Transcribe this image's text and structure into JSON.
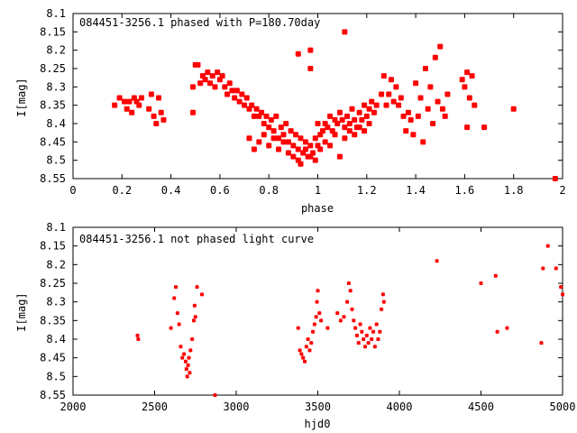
{
  "chart_data": [
    {
      "type": "scatter",
      "title": "084451-3256.1 phased with P=180.70day",
      "xlabel": "phase",
      "ylabel": "I[mag]",
      "xlim": [
        0,
        2
      ],
      "ylim": [
        8.1,
        8.55
      ],
      "y_inverted": true,
      "grid": false,
      "x_ticks": [
        "0",
        "0.2",
        "0.4",
        "0.6",
        "0.8",
        "1",
        "1.2",
        "1.4",
        "1.6",
        "1.8",
        "2"
      ],
      "y_ticks": [
        "8.1",
        "8.15",
        "8.2",
        "8.25",
        "8.3",
        "8.35",
        "8.4",
        "8.45",
        "8.5",
        "8.55"
      ],
      "marker_color": "#ff0000",
      "points": [
        [
          0.17,
          8.35
        ],
        [
          0.19,
          8.33
        ],
        [
          0.21,
          8.34
        ],
        [
          0.22,
          8.36
        ],
        [
          0.23,
          8.34
        ],
        [
          0.24,
          8.37
        ],
        [
          0.25,
          8.33
        ],
        [
          0.26,
          8.34
        ],
        [
          0.27,
          8.35
        ],
        [
          0.28,
          8.33
        ],
        [
          0.31,
          8.36
        ],
        [
          0.32,
          8.32
        ],
        [
          0.33,
          8.38
        ],
        [
          0.34,
          8.4
        ],
        [
          0.35,
          8.33
        ],
        [
          0.36,
          8.37
        ],
        [
          0.37,
          8.39
        ],
        [
          0.49,
          8.37
        ],
        [
          0.49,
          8.3
        ],
        [
          0.5,
          8.24
        ],
        [
          0.51,
          8.24
        ],
        [
          0.52,
          8.29
        ],
        [
          0.53,
          8.27
        ],
        [
          0.54,
          8.28
        ],
        [
          0.55,
          8.26
        ],
        [
          0.56,
          8.29
        ],
        [
          0.57,
          8.27
        ],
        [
          0.58,
          8.3
        ],
        [
          0.59,
          8.26
        ],
        [
          0.6,
          8.28
        ],
        [
          0.61,
          8.27
        ],
        [
          0.62,
          8.3
        ],
        [
          0.63,
          8.32
        ],
        [
          0.64,
          8.29
        ],
        [
          0.65,
          8.31
        ],
        [
          0.66,
          8.33
        ],
        [
          0.67,
          8.31
        ],
        [
          0.68,
          8.34
        ],
        [
          0.69,
          8.32
        ],
        [
          0.7,
          8.35
        ],
        [
          0.71,
          8.33
        ],
        [
          0.72,
          8.36
        ],
        [
          0.73,
          8.35
        ],
        [
          0.74,
          8.38
        ],
        [
          0.75,
          8.36
        ],
        [
          0.76,
          8.38
        ],
        [
          0.77,
          8.37
        ],
        [
          0.78,
          8.4
        ],
        [
          0.79,
          8.38
        ],
        [
          0.8,
          8.41
        ],
        [
          0.81,
          8.39
        ],
        [
          0.82,
          8.42
        ],
        [
          0.83,
          8.38
        ],
        [
          0.84,
          8.44
        ],
        [
          0.85,
          8.41
        ],
        [
          0.86,
          8.43
        ],
        [
          0.87,
          8.4
        ],
        [
          0.88,
          8.45
        ],
        [
          0.89,
          8.42
        ],
        [
          0.9,
          8.46
        ],
        [
          0.91,
          8.43
        ],
        [
          0.92,
          8.47
        ],
        [
          0.93,
          8.44
        ],
        [
          0.94,
          8.48
        ],
        [
          0.95,
          8.45
        ],
        [
          0.96,
          8.49
        ],
        [
          0.97,
          8.46
        ],
        [
          0.98,
          8.48
        ],
        [
          0.99,
          8.44
        ],
        [
          1.0,
          8.46
        ],
        [
          1.01,
          8.43
        ],
        [
          1.02,
          8.42
        ],
        [
          1.03,
          8.4
        ],
        [
          1.04,
          8.41
        ],
        [
          1.05,
          8.38
        ],
        [
          1.06,
          8.42
        ],
        [
          1.07,
          8.39
        ],
        [
          1.08,
          8.4
        ],
        [
          1.09,
          8.37
        ],
        [
          1.1,
          8.39
        ],
        [
          1.11,
          8.41
        ],
        [
          1.12,
          8.38
        ],
        [
          1.13,
          8.4
        ],
        [
          1.14,
          8.36
        ],
        [
          1.15,
          8.39
        ],
        [
          1.16,
          8.41
        ],
        [
          1.17,
          8.37
        ],
        [
          1.18,
          8.39
        ],
        [
          1.19,
          8.35
        ],
        [
          1.2,
          8.38
        ],
        [
          1.21,
          8.36
        ],
        [
          1.22,
          8.34
        ],
        [
          1.23,
          8.37
        ],
        [
          1.24,
          8.35
        ],
        [
          0.72,
          8.44
        ],
        [
          0.74,
          8.47
        ],
        [
          0.76,
          8.45
        ],
        [
          0.78,
          8.43
        ],
        [
          0.8,
          8.46
        ],
        [
          0.82,
          8.44
        ],
        [
          0.84,
          8.47
        ],
        [
          0.86,
          8.45
        ],
        [
          0.88,
          8.48
        ],
        [
          0.9,
          8.49
        ],
        [
          0.92,
          8.5
        ],
        [
          0.93,
          8.51
        ],
        [
          0.95,
          8.47
        ],
        [
          0.97,
          8.49
        ],
        [
          0.99,
          8.5
        ],
        [
          1.01,
          8.47
        ],
        [
          1.03,
          8.45
        ],
        [
          1.05,
          8.46
        ],
        [
          1.07,
          8.43
        ],
        [
          1.09,
          8.49
        ],
        [
          1.11,
          8.44
        ],
        [
          1.13,
          8.42
        ],
        [
          1.15,
          8.43
        ],
        [
          1.17,
          8.41
        ],
        [
          1.19,
          8.42
        ],
        [
          1.21,
          8.4
        ],
        [
          0.92,
          8.21
        ],
        [
          0.97,
          8.2
        ],
        [
          0.97,
          8.25
        ],
        [
          1.11,
          8.15
        ],
        [
          1.0,
          8.4
        ],
        [
          1.26,
          8.32
        ],
        [
          1.27,
          8.27
        ],
        [
          1.28,
          8.35
        ],
        [
          1.29,
          8.32
        ],
        [
          1.3,
          8.28
        ],
        [
          1.31,
          8.34
        ],
        [
          1.32,
          8.3
        ],
        [
          1.33,
          8.35
        ],
        [
          1.34,
          8.33
        ],
        [
          1.35,
          8.38
        ],
        [
          1.36,
          8.42
        ],
        [
          1.37,
          8.37
        ],
        [
          1.38,
          8.39
        ],
        [
          1.39,
          8.43
        ],
        [
          1.4,
          8.29
        ],
        [
          1.41,
          8.38
        ],
        [
          1.42,
          8.33
        ],
        [
          1.43,
          8.45
        ],
        [
          1.44,
          8.25
        ],
        [
          1.45,
          8.36
        ],
        [
          1.46,
          8.3
        ],
        [
          1.47,
          8.4
        ],
        [
          1.48,
          8.22
        ],
        [
          1.49,
          8.34
        ],
        [
          1.5,
          8.19
        ],
        [
          1.51,
          8.36
        ],
        [
          1.52,
          8.38
        ],
        [
          1.53,
          8.32
        ],
        [
          1.59,
          8.28
        ],
        [
          1.6,
          8.3
        ],
        [
          1.61,
          8.26
        ],
        [
          1.62,
          8.33
        ],
        [
          1.63,
          8.27
        ],
        [
          1.64,
          8.35
        ],
        [
          1.61,
          8.41
        ],
        [
          1.68,
          8.41
        ],
        [
          1.8,
          8.36
        ],
        [
          1.97,
          8.55
        ]
      ]
    },
    {
      "type": "scatter",
      "title": "084451-3256.1 not phased light curve",
      "xlabel": "hjd0",
      "ylabel": "I[mag]",
      "xlim": [
        2000,
        5000
      ],
      "ylim": [
        8.1,
        8.55
      ],
      "y_inverted": true,
      "grid": false,
      "x_ticks": [
        "2000",
        "2500",
        "3000",
        "3500",
        "4000",
        "4500",
        "5000"
      ],
      "y_ticks": [
        "8.1",
        "8.15",
        "8.2",
        "8.25",
        "8.3",
        "8.35",
        "8.4",
        "8.45",
        "8.5",
        "8.55"
      ],
      "marker_color": "#ff0000",
      "points": [
        [
          2395,
          8.39
        ],
        [
          2400,
          8.4
        ],
        [
          2600,
          8.37
        ],
        [
          2620,
          8.29
        ],
        [
          2630,
          8.26
        ],
        [
          2640,
          8.33
        ],
        [
          2650,
          8.36
        ],
        [
          2660,
          8.42
        ],
        [
          2670,
          8.45
        ],
        [
          2680,
          8.44
        ],
        [
          2690,
          8.46
        ],
        [
          2695,
          8.48
        ],
        [
          2700,
          8.5
        ],
        [
          2705,
          8.47
        ],
        [
          2710,
          8.45
        ],
        [
          2715,
          8.49
        ],
        [
          2720,
          8.43
        ],
        [
          2730,
          8.4
        ],
        [
          2740,
          8.35
        ],
        [
          2745,
          8.31
        ],
        [
          2750,
          8.34
        ],
        [
          2760,
          8.26
        ],
        [
          2790,
          8.28
        ],
        [
          2870,
          8.55
        ],
        [
          3380,
          8.37
        ],
        [
          3390,
          8.43
        ],
        [
          3400,
          8.44
        ],
        [
          3410,
          8.45
        ],
        [
          3420,
          8.46
        ],
        [
          3430,
          8.42
        ],
        [
          3440,
          8.4
        ],
        [
          3450,
          8.43
        ],
        [
          3460,
          8.41
        ],
        [
          3470,
          8.38
        ],
        [
          3480,
          8.36
        ],
        [
          3490,
          8.34
        ],
        [
          3495,
          8.3
        ],
        [
          3500,
          8.27
        ],
        [
          3510,
          8.33
        ],
        [
          3520,
          8.35
        ],
        [
          3560,
          8.37
        ],
        [
          3620,
          8.33
        ],
        [
          3640,
          8.35
        ],
        [
          3660,
          8.34
        ],
        [
          3680,
          8.3
        ],
        [
          3690,
          8.25
        ],
        [
          3700,
          8.27
        ],
        [
          3710,
          8.32
        ],
        [
          3720,
          8.35
        ],
        [
          3730,
          8.37
        ],
        [
          3740,
          8.39
        ],
        [
          3750,
          8.41
        ],
        [
          3760,
          8.36
        ],
        [
          3770,
          8.38
        ],
        [
          3780,
          8.4
        ],
        [
          3790,
          8.42
        ],
        [
          3800,
          8.39
        ],
        [
          3810,
          8.41
        ],
        [
          3820,
          8.37
        ],
        [
          3830,
          8.4
        ],
        [
          3840,
          8.38
        ],
        [
          3850,
          8.42
        ],
        [
          3860,
          8.36
        ],
        [
          3870,
          8.4
        ],
        [
          3880,
          8.38
        ],
        [
          3890,
          8.32
        ],
        [
          3900,
          8.28
        ],
        [
          3905,
          8.3
        ],
        [
          4230,
          8.19
        ],
        [
          4500,
          8.25
        ],
        [
          4590,
          8.23
        ],
        [
          4600,
          8.38
        ],
        [
          4660,
          8.37
        ],
        [
          4870,
          8.41
        ],
        [
          4880,
          8.21
        ],
        [
          4910,
          8.15
        ],
        [
          4960,
          8.21
        ],
        [
          4990,
          8.26
        ],
        [
          5000,
          8.28
        ]
      ]
    }
  ]
}
